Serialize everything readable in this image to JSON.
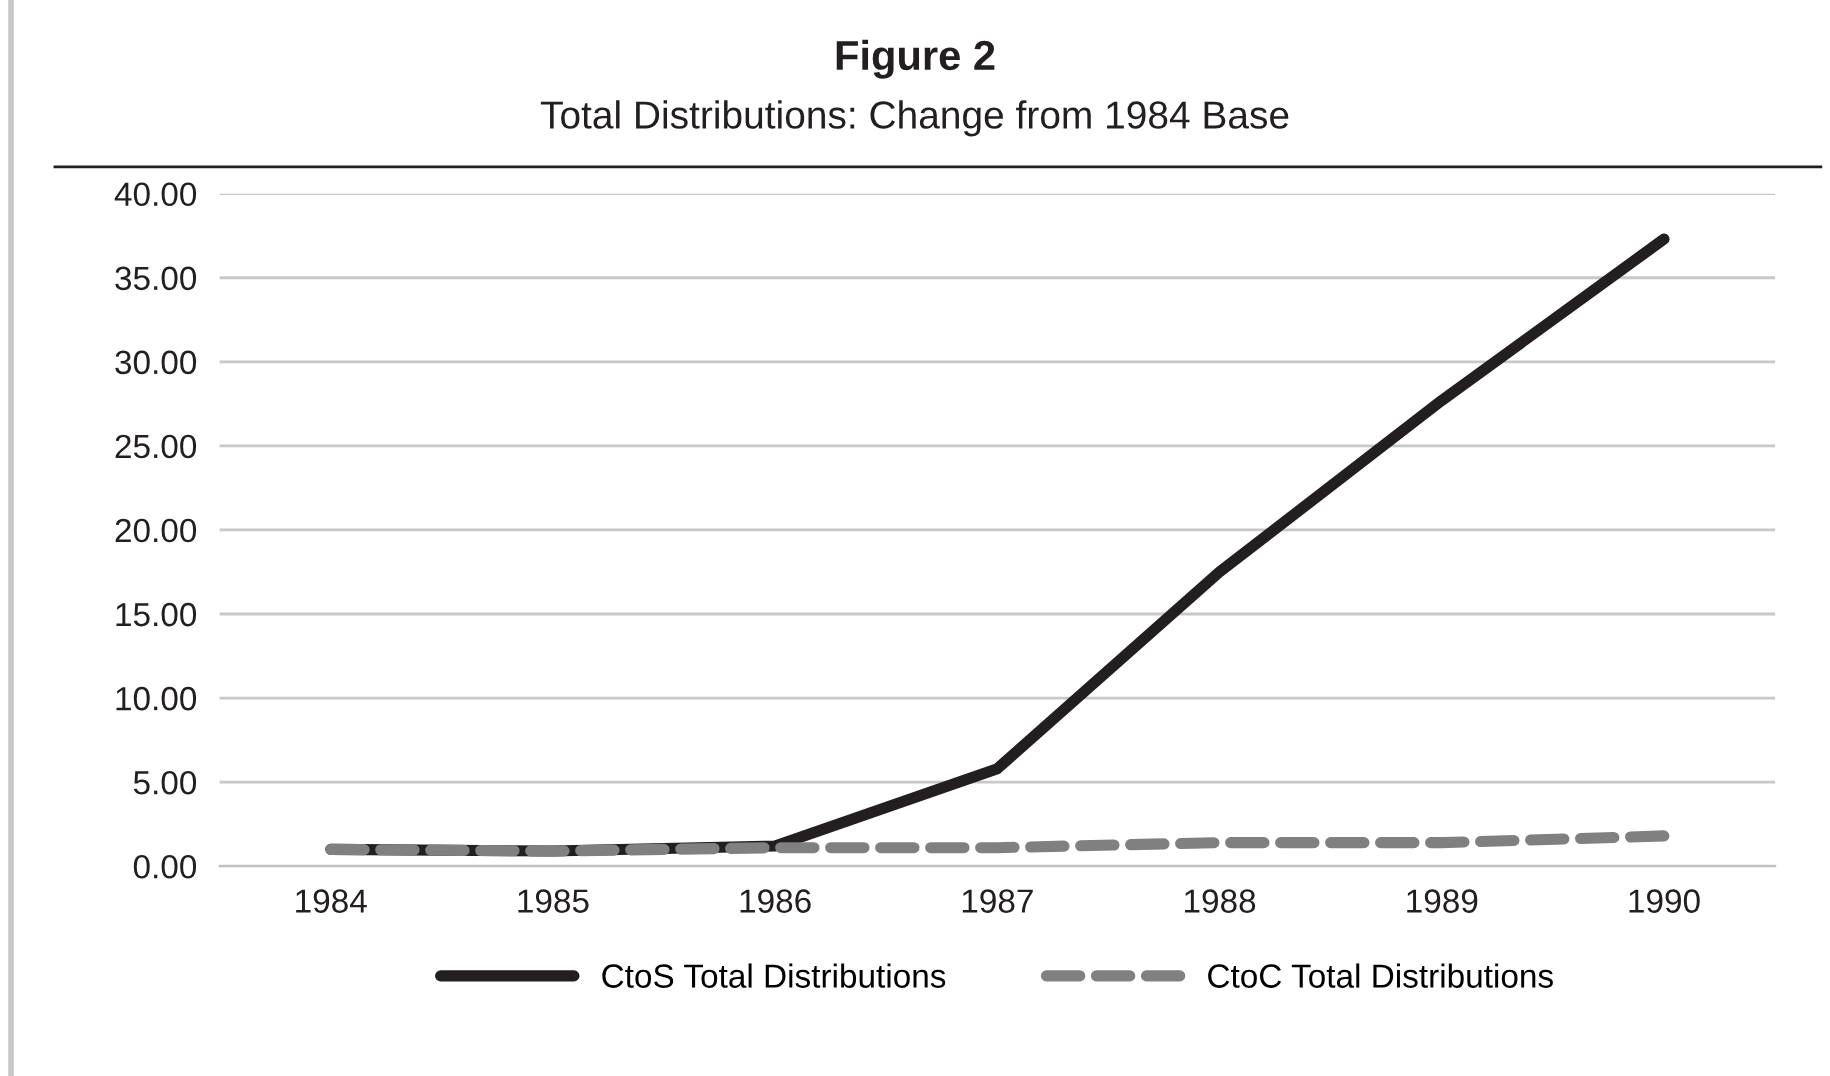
{
  "chart_data": {
    "type": "line",
    "title": "Figure 2",
    "subtitle": "Total Distributions: Change from 1984 Base",
    "categories": [
      "1984",
      "1985",
      "1986",
      "1987",
      "1988",
      "1989",
      "1990"
    ],
    "series": [
      {
        "name": "CtoS Total Distributions",
        "color": "#231f20",
        "line_style": "solid",
        "values": [
          1.0,
          0.9,
          1.2,
          5.8,
          17.5,
          27.7,
          37.3
        ]
      },
      {
        "name": "CtoC Total Distributions",
        "color": "#808080",
        "line_style": "dashed",
        "values": [
          1.0,
          0.9,
          1.1,
          1.1,
          1.4,
          1.4,
          1.8
        ]
      }
    ],
    "ylim": [
      0,
      40
    ],
    "yticks": [
      {
        "value": 0,
        "label": "0.00"
      },
      {
        "value": 5,
        "label": "5.00"
      },
      {
        "value": 10,
        "label": "10.00"
      },
      {
        "value": 15,
        "label": "15.00"
      },
      {
        "value": 20,
        "label": "20.00"
      },
      {
        "value": 25,
        "label": "25.00"
      },
      {
        "value": 30,
        "label": "30.00"
      },
      {
        "value": 35,
        "label": "35.00"
      },
      {
        "value": 40,
        "label": "40.00"
      }
    ],
    "grid": "y",
    "legend": "bottom",
    "marker": "none"
  }
}
